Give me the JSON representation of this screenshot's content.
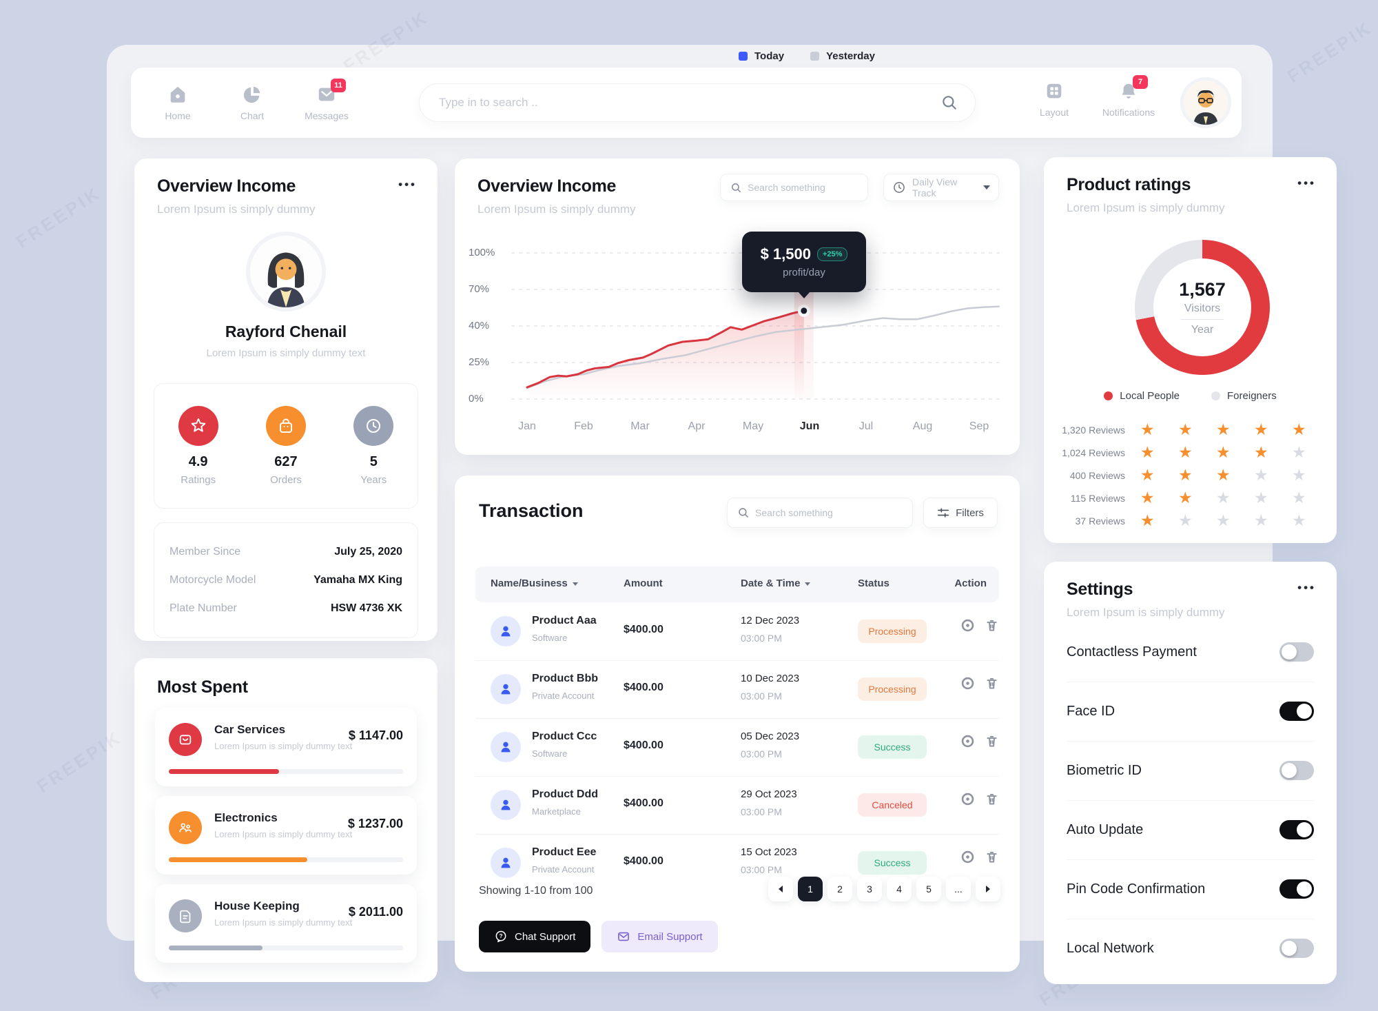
{
  "watermark": "FREEPIK",
  "legend": {
    "today": "Today",
    "yesterday": "Yesterday",
    "today_color": "#3d5afe",
    "yesterday_color": "#c9cdd6"
  },
  "nav": {
    "items": [
      {
        "label": "Home"
      },
      {
        "label": "Chart"
      },
      {
        "label": "Messages",
        "badge": "11"
      }
    ],
    "search_placeholder": "Type in to search ..",
    "right_items": [
      {
        "label": "Layout"
      },
      {
        "label": "Notifications",
        "badge": "7"
      }
    ]
  },
  "profile_card": {
    "title": "Overview Income",
    "subtitle": "Lorem Ipsum is simply dummy",
    "name": "Rayford Chenail",
    "name_subtitle": "Lorem Ipsum is simply dummy text",
    "stats": [
      {
        "value": "4.9",
        "label": "Ratings",
        "icon": "star-icon",
        "color": "#df3a44"
      },
      {
        "value": "627",
        "label": "Orders",
        "icon": "bag-icon",
        "color": "#f78f2e"
      },
      {
        "value": "5",
        "label": "Years",
        "icon": "clock-icon",
        "color": "#9aa3b5"
      }
    ],
    "details": [
      {
        "label": "Member Since",
        "value": "July 25, 2020"
      },
      {
        "label": "Motorcycle Model",
        "value": "Yamaha MX King"
      },
      {
        "label": "Plate Number",
        "value": "HSW 4736 XK"
      }
    ]
  },
  "most_spent": {
    "title": "Most Spent",
    "items": [
      {
        "name": "Car Services",
        "desc": "Lorem Ipsum is simply dummy text",
        "amount": "$ 1147.00",
        "color": "#df3a44",
        "progress": 47
      },
      {
        "name": "Electronics",
        "desc": "Lorem Ipsum is simply dummy text",
        "amount": "$ 1237.00",
        "color": "#f78f2e",
        "progress": 59
      },
      {
        "name": "House Keeping",
        "desc": "Lorem Ipsum is simply dummy text",
        "amount": "$ 2011.00",
        "color": "#a9b0bf",
        "progress": 40
      }
    ]
  },
  "income_chart": {
    "title": "Overview Income",
    "subtitle": "Lorem Ipsum is simply dummy",
    "search_placeholder": "Search something",
    "dropdown_label": "Daily View Track",
    "tooltip": {
      "value": "$ 1,500",
      "badge": "+25%",
      "label": "profit/day"
    },
    "chart_data": {
      "type": "line",
      "x": [
        "Jan",
        "Feb",
        "Mar",
        "Apr",
        "May",
        "Jun",
        "Jul",
        "Aug",
        "Sep"
      ],
      "y_ticks": [
        "100%",
        "70%",
        "40%",
        "25%",
        "0%"
      ],
      "y_tick_values": [
        0,
        25,
        40,
        70,
        100
      ],
      "grid": true,
      "series": [
        {
          "name": "Today",
          "color": "#d8353f",
          "points": [
            [
              0,
              8
            ],
            [
              0.2,
              11
            ],
            [
              0.4,
              15
            ],
            [
              0.55,
              16
            ],
            [
              0.7,
              15.5
            ],
            [
              0.9,
              17
            ],
            [
              1.05,
              19.5
            ],
            [
              1.2,
              21
            ],
            [
              1.45,
              22
            ],
            [
              1.6,
              24.5
            ],
            [
              1.8,
              26
            ],
            [
              2.05,
              27
            ],
            [
              2.2,
              28.5
            ],
            [
              2.5,
              32
            ],
            [
              2.75,
              33.5
            ],
            [
              3.0,
              34
            ],
            [
              3.2,
              34.5
            ],
            [
              3.45,
              37.5
            ],
            [
              3.6,
              39.5
            ],
            [
              3.8,
              38.5
            ],
            [
              4.0,
              40.5
            ],
            [
              4.2,
              44
            ],
            [
              4.45,
              47
            ],
            [
              4.7,
              50.5
            ],
            [
              4.9,
              52.5
            ]
          ]
        },
        {
          "name": "Yesterday",
          "color": "#c9ccd4",
          "points": [
            [
              0,
              7.5
            ],
            [
              0.3,
              12
            ],
            [
              0.6,
              15
            ],
            [
              0.8,
              16
            ],
            [
              1.0,
              17
            ],
            [
              1.3,
              20
            ],
            [
              1.6,
              22.5
            ],
            [
              2.0,
              24.5
            ],
            [
              2.4,
              26.5
            ],
            [
              2.8,
              28
            ],
            [
              3.2,
              30.5
            ],
            [
              3.6,
              33
            ],
            [
              4.0,
              35.5
            ],
            [
              4.4,
              37.5
            ],
            [
              4.8,
              38.5
            ],
            [
              5.2,
              39.5
            ],
            [
              5.6,
              41
            ],
            [
              6.0,
              44.5
            ],
            [
              6.3,
              46.5
            ],
            [
              6.6,
              45.5
            ],
            [
              6.9,
              45.5
            ],
            [
              7.2,
              48.5
            ],
            [
              7.5,
              52
            ],
            [
              7.8,
              54.5
            ],
            [
              8.1,
              55.5
            ],
            [
              8.35,
              56
            ]
          ]
        }
      ],
      "highlight": {
        "month": "Jun",
        "value_pct": 52.5,
        "tooltip_value": "$ 1,500",
        "tooltip_badge": "+25%",
        "tooltip_label": "profit/day"
      }
    }
  },
  "transactions": {
    "title": "Transaction",
    "search_placeholder": "Search something",
    "filters_label": "Filters",
    "columns": [
      "Name/Business",
      "Amount",
      "Date & Time",
      "Status",
      "Action"
    ],
    "rows": [
      {
        "name": "Product Aaa",
        "type": "Software",
        "amount": "$400.00",
        "date": "12 Dec 2023",
        "time": "03:00 PM",
        "status": "Processing",
        "status_class": "processing"
      },
      {
        "name": "Product Bbb",
        "type": "Private Account",
        "amount": "$400.00",
        "date": "10 Dec 2023",
        "time": "03:00 PM",
        "status": "Processing",
        "status_class": "processing"
      },
      {
        "name": "Product Ccc",
        "type": "Software",
        "amount": "$400.00",
        "date": "05 Dec 2023",
        "time": "03:00 PM",
        "status": "Success",
        "status_class": "success"
      },
      {
        "name": "Product Ddd",
        "type": "Marketplace",
        "amount": "$400.00",
        "date": "29 Oct 2023",
        "time": "03:00 PM",
        "status": "Canceled",
        "status_class": "canceled"
      },
      {
        "name": "Product Eee",
        "type": "Private Account",
        "amount": "$400.00",
        "date": "15 Oct 2023",
        "time": "03:00 PM",
        "status": "Success",
        "status_class": "success"
      }
    ],
    "footer": {
      "showing": "Showing 1-10 from 100",
      "pages": [
        "1",
        "2",
        "3",
        "4",
        "5",
        "..."
      ],
      "active_page": "1",
      "chat_label": "Chat Support",
      "email_label": "Email Support"
    }
  },
  "product_ratings": {
    "title": "Product ratings",
    "subtitle": "Lorem Ipsum is simply dummy",
    "donut": {
      "value": "1,567",
      "label": "Visitors",
      "sublabel": "Year",
      "local_pct": 72,
      "local_color": "#e23b3f",
      "foreign_color": "#e4e6eb"
    },
    "legend": [
      {
        "label": "Local People"
      },
      {
        "label": "Foreigners"
      }
    ],
    "reviews": [
      {
        "label": "1,320 Reviews",
        "stars": 5
      },
      {
        "label": "1,024 Reviews",
        "stars": 4
      },
      {
        "label": "400 Reviews",
        "stars": 3
      },
      {
        "label": "115 Reviews",
        "stars": 2
      },
      {
        "label": "37 Reviews",
        "stars": 1
      }
    ]
  },
  "settings": {
    "title": "Settings",
    "subtitle": "Lorem Ipsum is simply dummy",
    "items": [
      {
        "label": "Contactless Payment",
        "enabled": false
      },
      {
        "label": "Face ID",
        "enabled": true
      },
      {
        "label": "Biometric ID",
        "enabled": false
      },
      {
        "label": "Auto Update",
        "enabled": true
      },
      {
        "label": "Pin Code Confirmation",
        "enabled": true
      },
      {
        "label": "Local Network",
        "enabled": false
      }
    ]
  }
}
